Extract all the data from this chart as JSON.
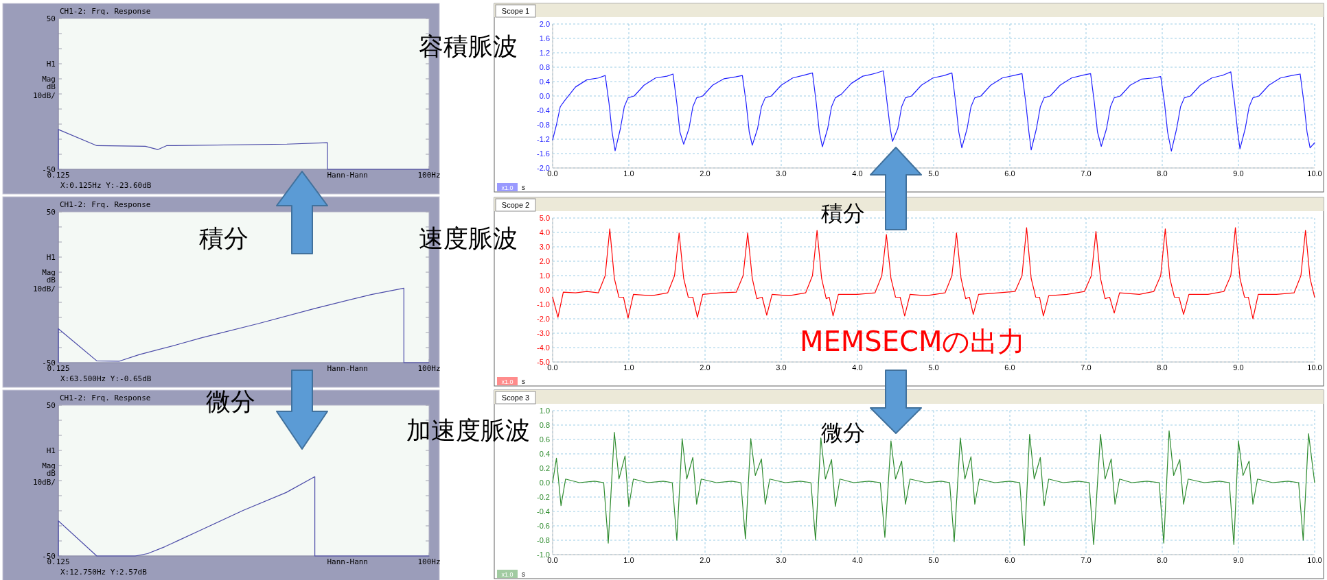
{
  "chart_data": [
    {
      "type": "line",
      "title": "CH1-2: Frq. Response",
      "ylabel": "H1 Mag dB 10dB/",
      "log": "x",
      "xlim": [
        0.125,
        100
      ],
      "ylim": [
        -50,
        50
      ],
      "xticks": [
        {
          "value": 0.125,
          "label": "0.125"
        },
        {
          "value": 100,
          "label": "100Hz"
        }
      ],
      "yticks": [
        50,
        {
          "value": 40,
          "label": null
        },
        {
          "value": 30,
          "label": null
        },
        {
          "value": 20,
          "label": null
        },
        {
          "value": 10,
          "label": null
        },
        {
          "value": 0,
          "label": null
        },
        {
          "value": -10,
          "label": null
        },
        {
          "value": -20,
          "label": null
        },
        {
          "value": -30,
          "label": null
        },
        {
          "value": -40,
          "label": null
        },
        -50
      ],
      "annotations": [
        "Hann-Hann",
        "X:0.125Hz Y:-23.60dB"
      ],
      "x": [
        0.125,
        0.125,
        0.25,
        0.6,
        0.75,
        0.88,
        7.7,
        16,
        16,
        100
      ],
      "series": [
        {
          "color": "#4a4aa8",
          "values": [
            -50,
            -23.6,
            -34.3,
            -34.7,
            -36.9,
            -34.3,
            -33.3,
            -32.3,
            -50,
            -50
          ]
        }
      ]
    },
    {
      "type": "line",
      "title": "CH1-2: Frq. Response",
      "ylabel": "H1 Mag dB 10dB/",
      "log": "x",
      "xlim": [
        0.125,
        100
      ],
      "ylim": [
        -50,
        50
      ],
      "xticks": [
        {
          "value": 0.125,
          "label": "0.125"
        },
        {
          "value": 100,
          "label": "100Hz"
        }
      ],
      "yticks": [
        50,
        {
          "value": 40,
          "label": null
        },
        {
          "value": 30,
          "label": null
        },
        {
          "value": 20,
          "label": null
        },
        {
          "value": 10,
          "label": null
        },
        {
          "value": 0,
          "label": null
        },
        {
          "value": -10,
          "label": null
        },
        {
          "value": -20,
          "label": null
        },
        {
          "value": -30,
          "label": null
        },
        {
          "value": -40,
          "label": null
        },
        -50
      ],
      "annotations": [
        "Hann-Hann",
        "X:63.500Hz Y:-0.65dB",
        "積分"
      ],
      "x": [
        0.125,
        0.125,
        0.25,
        0.376,
        0.54,
        1.05,
        1.66,
        4.6,
        12.8,
        35.3,
        63.5,
        63.5,
        100
      ],
      "series": [
        {
          "color": "#4a4aa8",
          "values": [
            -50,
            -27.5,
            -48.8,
            -49,
            -44.6,
            -38.2,
            -33.5,
            -24.1,
            -14,
            -4.8,
            -0.65,
            -50,
            -50
          ]
        }
      ]
    },
    {
      "type": "line",
      "title": "CH1-2: Frq. Response",
      "ylabel": "H1 Mag dB 10dB/",
      "log": "x",
      "xlim": [
        0.125,
        100
      ],
      "ylim": [
        -50,
        50
      ],
      "xticks": [
        {
          "value": 0.125,
          "label": "0.125"
        },
        {
          "value": 100,
          "label": "100Hz"
        }
      ],
      "yticks": [
        50,
        {
          "value": 40,
          "label": null
        },
        {
          "value": 30,
          "label": null
        },
        {
          "value": 20,
          "label": null
        },
        {
          "value": 10,
          "label": null
        },
        {
          "value": 0,
          "label": null
        },
        {
          "value": -10,
          "label": null
        },
        {
          "value": -20,
          "label": null
        },
        {
          "value": -30,
          "label": null
        },
        {
          "value": -40,
          "label": null
        },
        -50
      ],
      "annotations": [
        "Hann-Hann",
        "X:12.750Hz Y:2.57dB",
        "微分"
      ],
      "x": [
        0.125,
        0.125,
        0.25,
        0.5,
        0.625,
        0.85,
        1.65,
        3.5,
        7.6,
        12.75,
        12.75,
        100
      ],
      "series": [
        {
          "color": "#4a4aa8",
          "values": [
            -50,
            -26.7,
            -50,
            -50,
            -48.4,
            -43.9,
            -32.6,
            -19.8,
            -7.9,
            2.57,
            -50,
            -50
          ]
        }
      ]
    },
    {
      "type": "line",
      "title": "Scope 1",
      "xlabel": "s",
      "grid": true,
      "xlim": [
        0,
        10
      ],
      "ylim": [
        -2,
        2
      ],
      "xticks": [
        {
          "value": 0,
          "label": "0.0"
        },
        {
          "value": 1,
          "label": "1.0"
        },
        {
          "value": 2,
          "label": "2.0"
        },
        {
          "value": 3,
          "label": "3.0"
        },
        {
          "value": 4,
          "label": "4.0"
        },
        {
          "value": 5,
          "label": "5.0"
        },
        {
          "value": 6,
          "label": "6.0"
        },
        {
          "value": 7,
          "label": "7.0"
        },
        {
          "value": 8,
          "label": "8.0"
        },
        {
          "value": 9,
          "label": "9.0"
        },
        {
          "value": 10,
          "label": "10.0"
        }
      ],
      "yticks": [
        {
          "value": 2,
          "label": "2.0"
        },
        1.6,
        1.2,
        0.8,
        0.4,
        {
          "value": 0,
          "label": "0.0"
        },
        -0.4,
        -0.8,
        -1.2,
        -1.6,
        {
          "value": -2,
          "label": "-2.0"
        }
      ],
      "annotations": [
        "x1.0",
        "容積脈波"
      ],
      "x": [
        0,
        0.05,
        0.1,
        0.15,
        0.3,
        0.45,
        0.6,
        0.69,
        0.74,
        0.78,
        0.82,
        0.89,
        0.94,
        0.99,
        1.07,
        1.2,
        1.35,
        1.5,
        1.58,
        1.63,
        1.67,
        1.72,
        1.79,
        1.84,
        1.89,
        1.97,
        2.1,
        2.25,
        2.4,
        2.49,
        2.54,
        2.58,
        2.62,
        2.69,
        2.74,
        2.79,
        2.87,
        3.0,
        3.15,
        3.3,
        3.41,
        3.46,
        3.5,
        3.54,
        3.61,
        3.66,
        3.71,
        3.79,
        3.92,
        4.07,
        4.22,
        4.34,
        4.39,
        4.43,
        4.46,
        4.53,
        4.58,
        4.63,
        4.71,
        4.84,
        4.99,
        5.14,
        5.24,
        5.29,
        5.33,
        5.37,
        5.44,
        5.49,
        5.54,
        5.62,
        5.75,
        5.9,
        6.05,
        6.16,
        6.21,
        6.25,
        6.28,
        6.35,
        6.4,
        6.45,
        6.53,
        6.66,
        6.81,
        6.96,
        7.06,
        7.11,
        7.15,
        7.2,
        7.27,
        7.32,
        7.37,
        7.45,
        7.58,
        7.73,
        7.88,
        7.98,
        8.03,
        8.07,
        8.12,
        8.19,
        8.24,
        8.29,
        8.37,
        8.5,
        8.65,
        8.8,
        8.9,
        8.95,
        8.99,
        9.02,
        9.09,
        9.14,
        9.19,
        9.27,
        9.4,
        9.55,
        9.7,
        9.81,
        9.86,
        9.9,
        9.94,
        10
      ],
      "series": [
        {
          "color": "#1f1fff",
          "values": [
            -1.22,
            -0.8,
            -0.3,
            -0.15,
            0.25,
            0.45,
            0.5,
            0.57,
            -0.2,
            -1.0,
            -1.52,
            -0.9,
            -0.3,
            -0.05,
            0.0,
            0.3,
            0.5,
            0.55,
            0.61,
            -0.2,
            -1.0,
            -1.34,
            -0.9,
            -0.3,
            -0.05,
            0.0,
            0.3,
            0.48,
            0.53,
            0.57,
            -0.2,
            -1.0,
            -1.37,
            -0.9,
            -0.3,
            -0.05,
            0.0,
            0.3,
            0.5,
            0.58,
            0.64,
            -0.2,
            -1.0,
            -1.41,
            -0.9,
            -0.3,
            -0.05,
            0.05,
            0.35,
            0.55,
            0.62,
            0.7,
            -0.2,
            -0.9,
            -1.26,
            -0.9,
            -0.3,
            -0.05,
            0.0,
            0.3,
            0.5,
            0.57,
            0.64,
            -0.2,
            -1.0,
            -1.44,
            -0.9,
            -0.3,
            -0.05,
            0.0,
            0.3,
            0.5,
            0.57,
            0.62,
            -0.2,
            -1.0,
            -1.5,
            -0.9,
            -0.3,
            -0.05,
            0.0,
            0.3,
            0.5,
            0.58,
            0.62,
            -0.2,
            -1.0,
            -1.4,
            -0.9,
            -0.3,
            -0.05,
            0.0,
            0.3,
            0.47,
            0.5,
            0.54,
            -0.2,
            -1.0,
            -1.53,
            -0.9,
            -0.3,
            -0.05,
            0.0,
            0.3,
            0.5,
            0.58,
            0.67,
            -0.2,
            -1.0,
            -1.47,
            -0.9,
            -0.3,
            -0.05,
            0.0,
            0.3,
            0.5,
            0.57,
            0.61,
            -0.2,
            -1.0,
            -1.44,
            -1.3
          ]
        }
      ]
    },
    {
      "type": "line",
      "title": "Scope 2",
      "xlabel": "s",
      "grid": true,
      "xlim": [
        0,
        10
      ],
      "ylim": [
        -5,
        5
      ],
      "xticks": [
        {
          "value": 0,
          "label": "0.0"
        },
        {
          "value": 1,
          "label": "1.0"
        },
        {
          "value": 2,
          "label": "2.0"
        },
        {
          "value": 3,
          "label": "3.0"
        },
        {
          "value": 4,
          "label": "4.0"
        },
        {
          "value": 5,
          "label": "5.0"
        },
        {
          "value": 6,
          "label": "6.0"
        },
        {
          "value": 7,
          "label": "7.0"
        },
        {
          "value": 8,
          "label": "8.0"
        },
        {
          "value": 9,
          "label": "9.0"
        },
        {
          "value": 10,
          "label": "10.0"
        }
      ],
      "yticks": [
        {
          "value": 5,
          "label": "5.0"
        },
        {
          "value": 4,
          "label": "4.0"
        },
        {
          "value": 3,
          "label": "3.0"
        },
        {
          "value": 2,
          "label": "2.0"
        },
        {
          "value": 1,
          "label": "1.0"
        },
        {
          "value": 0,
          "label": "0.0"
        },
        {
          "value": -1,
          "label": "-1.0"
        },
        {
          "value": -2,
          "label": "-2.0"
        },
        {
          "value": -3,
          "label": "-3.0"
        },
        {
          "value": -4,
          "label": "-4.0"
        },
        {
          "value": -5,
          "label": "-5.0"
        }
      ],
      "annotations": [
        "x1.0",
        "速度脈波",
        "積分",
        "MEMSECMの出力"
      ],
      "x": [
        0,
        0.07,
        0.14,
        0.3,
        0.45,
        0.6,
        0.69,
        0.75,
        0.81,
        0.87,
        0.93,
        0.99,
        1.06,
        1.3,
        1.51,
        1.6,
        1.66,
        1.72,
        1.78,
        1.84,
        1.9,
        1.97,
        2.2,
        2.41,
        2.5,
        2.56,
        2.62,
        2.68,
        2.75,
        2.81,
        2.88,
        3.1,
        3.32,
        3.41,
        3.47,
        3.53,
        3.59,
        3.63,
        3.68,
        3.75,
        4.0,
        4.23,
        4.32,
        4.38,
        4.44,
        4.5,
        4.56,
        4.62,
        4.69,
        4.9,
        5.15,
        5.24,
        5.3,
        5.36,
        5.42,
        5.47,
        5.52,
        5.59,
        5.85,
        6.07,
        6.16,
        6.22,
        6.28,
        6.34,
        6.39,
        6.44,
        6.51,
        6.75,
        6.98,
        7.07,
        7.13,
        7.19,
        7.25,
        7.31,
        7.37,
        7.44,
        7.7,
        7.89,
        7.98,
        8.04,
        8.1,
        8.16,
        8.22,
        8.28,
        8.35,
        8.6,
        8.81,
        8.9,
        8.96,
        9.02,
        9.08,
        9.13,
        9.19,
        9.26,
        9.5,
        9.73,
        9.82,
        9.88,
        9.94,
        10
      ],
      "series": [
        {
          "color": "#ff0000",
          "values": [
            -0.5,
            -1.9,
            -0.15,
            -0.2,
            -0.1,
            -0.2,
            1.0,
            4.25,
            0.8,
            -0.5,
            -0.5,
            -1.95,
            -0.3,
            -0.4,
            -0.2,
            1.0,
            3.96,
            0.8,
            -0.5,
            -0.5,
            -1.9,
            -0.3,
            -0.2,
            -0.15,
            1.0,
            3.96,
            0.8,
            -0.6,
            -0.5,
            -1.75,
            -0.3,
            -0.4,
            -0.2,
            1.0,
            4.14,
            0.8,
            -0.6,
            -0.5,
            -1.8,
            -0.3,
            -0.3,
            -0.2,
            1.0,
            3.85,
            0.8,
            -0.5,
            -0.5,
            -1.8,
            -0.3,
            -0.4,
            -0.2,
            1.0,
            3.96,
            0.8,
            -0.6,
            -0.5,
            -1.7,
            -0.3,
            -0.2,
            -0.1,
            1.0,
            4.33,
            0.8,
            -0.5,
            -0.5,
            -1.8,
            -0.4,
            -0.3,
            -0.1,
            1.0,
            4.07,
            0.8,
            -0.6,
            -0.5,
            -1.6,
            -0.2,
            -0.3,
            -0.1,
            1.0,
            4.25,
            0.8,
            -0.5,
            -0.5,
            -1.7,
            -0.3,
            -0.3,
            -0.1,
            1.0,
            4.33,
            0.8,
            -0.5,
            -0.5,
            -2.0,
            -0.3,
            -0.3,
            -0.2,
            1.0,
            4.14,
            0.8,
            -0.5
          ]
        }
      ]
    },
    {
      "type": "line",
      "title": "Scope 3",
      "xlabel": "s",
      "grid": true,
      "xlim": [
        0,
        10
      ],
      "ylim": [
        -1,
        1
      ],
      "xticks": [
        {
          "value": 0,
          "label": "0.0"
        },
        {
          "value": 1,
          "label": "1.0"
        },
        {
          "value": 2,
          "label": "2.0"
        },
        {
          "value": 3,
          "label": "3.0"
        },
        {
          "value": 4,
          "label": "4.0"
        },
        {
          "value": 5,
          "label": "5.0"
        },
        {
          "value": 6,
          "label": "6.0"
        },
        {
          "value": 7,
          "label": "7.0"
        },
        {
          "value": 8,
          "label": "8.0"
        },
        {
          "value": 9,
          "label": "9.0"
        },
        {
          "value": 10,
          "label": "10.0"
        }
      ],
      "yticks": [
        {
          "value": 1,
          "label": "1.0"
        },
        0.8,
        0.6,
        0.4,
        0.2,
        {
          "value": 0,
          "label": "0.0"
        },
        -0.2,
        -0.4,
        -0.6,
        -0.8,
        {
          "value": -1,
          "label": "-1.0"
        }
      ],
      "annotations": [
        "x1.0",
        "加速度脈波",
        "微分"
      ],
      "x": [
        0,
        0.05,
        0.11,
        0.17,
        0.35,
        0.55,
        0.67,
        0.73,
        0.81,
        0.87,
        0.95,
        1.0,
        1.06,
        1.25,
        1.45,
        1.57,
        1.63,
        1.7,
        1.76,
        1.84,
        1.89,
        1.95,
        2.15,
        2.35,
        2.47,
        2.53,
        2.6,
        2.66,
        2.74,
        2.79,
        2.85,
        3.05,
        3.25,
        3.39,
        3.45,
        3.52,
        3.58,
        3.66,
        3.71,
        3.77,
        3.95,
        4.15,
        4.3,
        4.36,
        4.44,
        4.5,
        4.58,
        4.63,
        4.69,
        4.9,
        5.1,
        5.21,
        5.27,
        5.35,
        5.41,
        5.49,
        5.54,
        5.6,
        5.8,
        6.0,
        6.13,
        6.19,
        6.26,
        6.32,
        6.4,
        6.45,
        6.51,
        6.7,
        6.9,
        7.04,
        7.1,
        7.19,
        7.25,
        7.33,
        7.38,
        7.44,
        7.6,
        7.8,
        7.96,
        8.02,
        8.09,
        8.15,
        8.23,
        8.28,
        8.34,
        8.55,
        8.75,
        8.88,
        8.94,
        9.0,
        9.06,
        9.14,
        9.19,
        9.25,
        9.45,
        9.65,
        9.79,
        9.85,
        9.92,
        10
      ],
      "series": [
        {
          "color": "#2e8b2e",
          "values": [
            0.0,
            0.34,
            -0.32,
            0.05,
            0.0,
            0.02,
            0.0,
            -0.84,
            0.7,
            0.05,
            0.37,
            -0.33,
            0.05,
            0.0,
            0.02,
            0.0,
            -0.8,
            0.61,
            0.05,
            0.35,
            -0.3,
            0.05,
            0.0,
            0.02,
            0.0,
            -0.78,
            0.61,
            0.1,
            0.33,
            -0.3,
            0.05,
            0.0,
            0.02,
            0.0,
            -0.8,
            0.62,
            0.05,
            0.32,
            -0.33,
            0.05,
            0.0,
            0.02,
            0.0,
            -0.76,
            0.58,
            0.05,
            0.3,
            -0.3,
            0.05,
            0.0,
            0.02,
            0.0,
            -0.82,
            0.62,
            0.05,
            0.36,
            -0.3,
            0.05,
            0.0,
            0.02,
            0.0,
            -0.87,
            0.67,
            0.05,
            0.35,
            -0.32,
            0.05,
            0.0,
            0.02,
            0.0,
            -0.86,
            0.67,
            0.05,
            0.33,
            -0.3,
            0.05,
            0.0,
            0.02,
            0.0,
            -0.84,
            0.72,
            0.1,
            0.32,
            -0.3,
            0.05,
            0.0,
            0.02,
            0.0,
            -0.86,
            0.58,
            0.1,
            0.3,
            -0.3,
            0.05,
            0.0,
            0.02,
            0.0,
            -0.8,
            0.68,
            0.0
          ]
        }
      ]
    }
  ]
}
